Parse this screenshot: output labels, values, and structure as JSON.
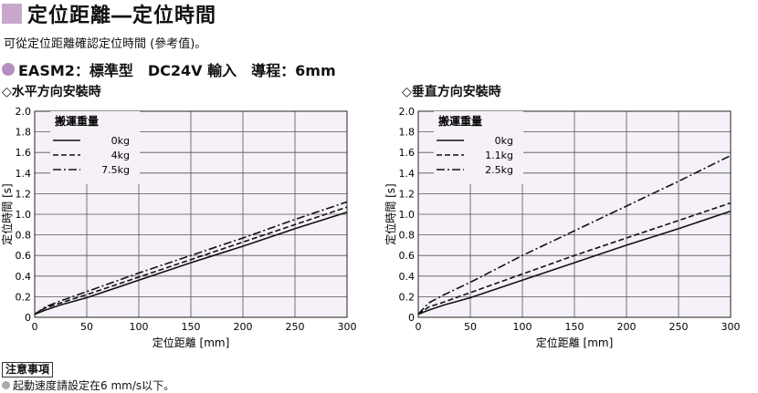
{
  "header": {
    "title": "定位距離―定位時間",
    "subtitle": "可從定位距離確認定位時間 (參考值)。",
    "model": "EASM2：標準型　DC24V 輸入　導程：6mm",
    "accent_color": "#c9a6cc"
  },
  "chart_data": [
    {
      "type": "line",
      "heading": "◇水平方向安裝時",
      "xlabel": "定位距離 [mm]",
      "ylabel": "定位時間 [s]",
      "xlim": [
        0,
        300
      ],
      "ylim": [
        0,
        2.0
      ],
      "xticks": [
        0,
        50,
        100,
        150,
        200,
        250,
        300
      ],
      "yticks": [
        0,
        0.2,
        0.4,
        0.6,
        0.8,
        1.0,
        1.2,
        1.4,
        1.6,
        1.8,
        2.0
      ],
      "grid": true,
      "legend_title": "搬運重量",
      "legend_position": "top-left",
      "series": [
        {
          "name": "0kg",
          "style": "solid",
          "x": [
            0,
            10,
            25,
            50,
            100,
            150,
            200,
            250,
            300
          ],
          "y": [
            0.03,
            0.07,
            0.12,
            0.19,
            0.36,
            0.53,
            0.69,
            0.86,
            1.02
          ]
        },
        {
          "name": "4kg",
          "style": "dashed",
          "x": [
            0,
            10,
            25,
            50,
            100,
            150,
            200,
            250,
            300
          ],
          "y": [
            0.03,
            0.09,
            0.14,
            0.22,
            0.39,
            0.56,
            0.73,
            0.9,
            1.07
          ]
        },
        {
          "name": "7.5kg",
          "style": "dashdot",
          "x": [
            0,
            10,
            25,
            50,
            100,
            150,
            200,
            250,
            300
          ],
          "y": [
            0.03,
            0.1,
            0.16,
            0.25,
            0.43,
            0.6,
            0.77,
            0.95,
            1.12
          ]
        }
      ]
    },
    {
      "type": "line",
      "heading": "◇垂直方向安裝時",
      "xlabel": "定位距離 [mm]",
      "ylabel": "定位時間 [s]",
      "xlim": [
        0,
        300
      ],
      "ylim": [
        0,
        2.0
      ],
      "xticks": [
        0,
        50,
        100,
        150,
        200,
        250,
        300
      ],
      "yticks": [
        0,
        0.2,
        0.4,
        0.6,
        0.8,
        1.0,
        1.2,
        1.4,
        1.6,
        1.8,
        2.0
      ],
      "grid": true,
      "legend_title": "搬運重量",
      "legend_position": "top-left",
      "series": [
        {
          "name": "0kg",
          "style": "solid",
          "x": [
            0,
            10,
            25,
            50,
            100,
            150,
            200,
            250,
            300
          ],
          "y": [
            0.03,
            0.07,
            0.12,
            0.19,
            0.36,
            0.53,
            0.7,
            0.86,
            1.03
          ]
        },
        {
          "name": "1.1kg",
          "style": "dashed",
          "x": [
            0,
            10,
            25,
            50,
            100,
            150,
            200,
            250,
            300
          ],
          "y": [
            0.03,
            0.1,
            0.15,
            0.24,
            0.42,
            0.6,
            0.77,
            0.94,
            1.11
          ]
        },
        {
          "name": "2.5kg",
          "style": "dashdot",
          "x": [
            0,
            10,
            25,
            50,
            100,
            150,
            200,
            250,
            300
          ],
          "y": [
            0.03,
            0.14,
            0.22,
            0.34,
            0.6,
            0.84,
            1.08,
            1.32,
            1.57
          ]
        }
      ]
    }
  ],
  "notes": {
    "title": "注意事項",
    "item": "起動速度請設定在6 mm/s以下。"
  }
}
